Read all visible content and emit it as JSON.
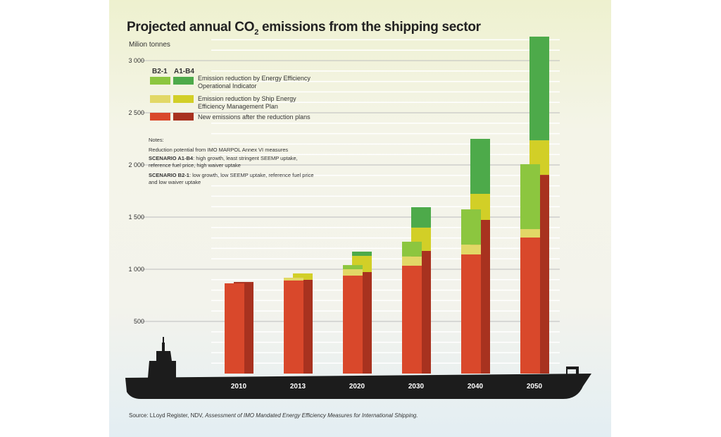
{
  "title": "Projected annual CO",
  "title_sub": "2",
  "title_rest": " emissions from the shipping sector",
  "unit": "Milion tonnes",
  "legend": {
    "scenario_b": "B2-1",
    "scenario_a": "A1-B4",
    "items": [
      "Emission reduction by Energy Efficiency Operational Indicator",
      "Emission reduction by Ship Energy Efficiency Management Plan",
      "New emissions after the reduction plans"
    ]
  },
  "notes": {
    "heading": "Notes:",
    "line1": "Reduction potential from IMO MARPOL Annex VI  measures",
    "a_label": "SCENARIO A1-B4",
    "a_text": ": high growth, least stringent SEEMP uptake, reference fuel price, high waiver uptake",
    "b_label": "SCENARIO B2-1",
    "b_text": ": low growth, low SEEMP uptake, reference fuel price and low waiver uptake"
  },
  "source_prefix": "Source: LLoyd Register, NDV, ",
  "source_title": "Assessment of IMO Mandated Energy Efficiency Measures for International Shipping.",
  "chart_data": {
    "type": "bar",
    "stacked": true,
    "title": "Projected annual CO2 emissions from the shipping sector",
    "ylabel": "Milion tonnes",
    "ylim": [
      0,
      3000
    ],
    "yticks": [
      500,
      1000,
      1500,
      2000,
      2500,
      3000
    ],
    "ytick_labels": [
      "500",
      "1 000",
      "1 500",
      "2 000",
      "2 500",
      "3 000"
    ],
    "categories": [
      "2010",
      "2013",
      "2020",
      "2030",
      "2040",
      "2050"
    ],
    "grid": true,
    "legend": "top-left",
    "series": [
      {
        "name": "B2-1",
        "segments": [
          {
            "name": "New emissions after the reduction plans",
            "color": "#d9482b",
            "values": [
              865,
              892,
              939,
              1034,
              1142,
              1304
            ]
          },
          {
            "name": "Emission reduction by Ship Energy Efficiency Management Plan",
            "color": "#e2d866",
            "values": [
              0,
              27,
              61,
              88,
              94,
              81
            ]
          },
          {
            "name": "Emission reduction by Energy Efficiency Operational Indicator",
            "color": "#8cc63f",
            "values": [
              0,
              0,
              40,
              142,
              338,
              622
            ]
          }
        ]
      },
      {
        "name": "A1-B4",
        "segments": [
          {
            "name": "New emissions after the reduction plans",
            "color": "#a8321f",
            "values": [
              878,
              899,
              973,
              1176,
              1473,
              1905
            ]
          },
          {
            "name": "Emission reduction by Ship Energy Efficiency Management Plan",
            "color": "#d2cf27",
            "values": [
              0,
              61,
              155,
              223,
              250,
              331
            ]
          },
          {
            "name": "Emission reduction by Energy Efficiency Operational Indicator",
            "color": "#4daa4a",
            "values": [
              0,
              0,
              41,
              196,
              527,
              994
            ]
          }
        ]
      }
    ]
  }
}
